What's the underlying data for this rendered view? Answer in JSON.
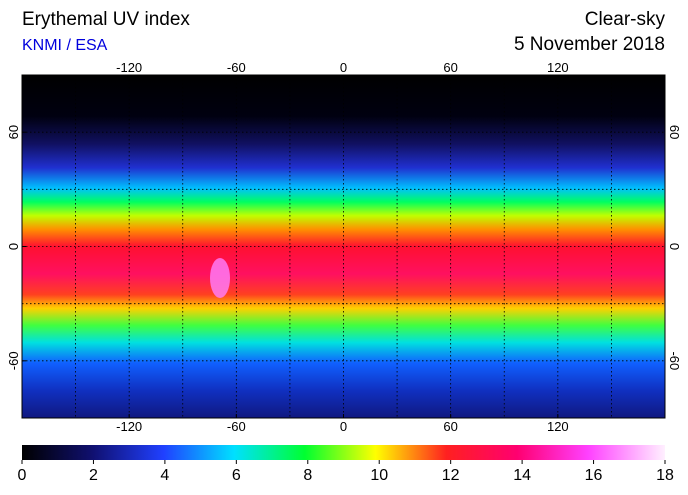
{
  "header": {
    "title": "Erythemal UV index",
    "source": "KNMI / ESA",
    "sky": "Clear-sky",
    "date": "5 November 2018"
  },
  "map": {
    "lonlim": [
      -180,
      180
    ],
    "latlim": [
      -90,
      90
    ],
    "lon_ticks": [
      -120,
      -60,
      0,
      60,
      120
    ],
    "lat_ticks": [
      60,
      0,
      -60
    ],
    "grid_spacing": 30
  },
  "colorbar": {
    "lim": [
      0,
      18
    ],
    "ticks": [
      0,
      2,
      4,
      6,
      8,
      10,
      12,
      14,
      16,
      18
    ]
  }
}
